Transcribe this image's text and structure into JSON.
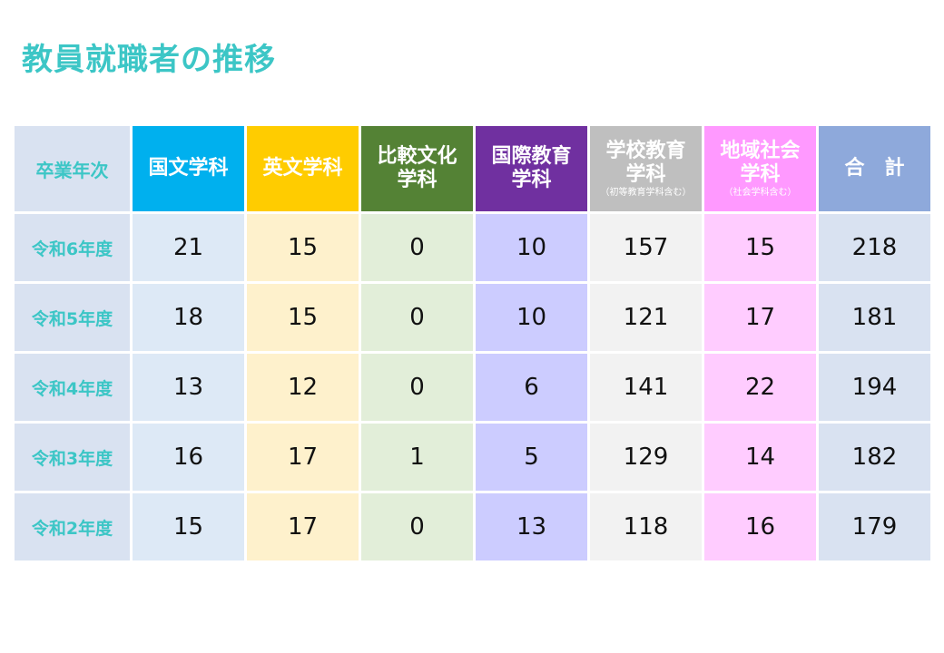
{
  "page": {
    "title": "教員就職者の推移"
  },
  "colors": {
    "title": "#3cc6c6",
    "year_col": "#d9e2f1",
    "total_col": "#d9e2f1"
  },
  "table": {
    "corner": "卒業年次",
    "columns": [
      {
        "key": "kokubun",
        "lines": [
          "国文学科"
        ],
        "sub": "",
        "header_bg": "#00b0ee",
        "cell_bg": "#dde9f6"
      },
      {
        "key": "eibun",
        "lines": [
          "英文学科"
        ],
        "sub": "",
        "header_bg": "#ffcc00",
        "cell_bg": "#fef1cc"
      },
      {
        "key": "hikaku",
        "lines": [
          "比較文化",
          "学科"
        ],
        "sub": "",
        "header_bg": "#548235",
        "cell_bg": "#e2eed9"
      },
      {
        "key": "kokusai",
        "lines": [
          "国際教育",
          "学科"
        ],
        "sub": "",
        "header_bg": "#7030a0",
        "cell_bg": "#ccccff"
      },
      {
        "key": "gakko",
        "lines": [
          "学校教育",
          "学科"
        ],
        "sub": "（初等教育学科含む）",
        "header_bg": "#bfbfbf",
        "cell_bg": "#f2f2f2"
      },
      {
        "key": "chiiki",
        "lines": [
          "地域社会",
          "学科"
        ],
        "sub": "（社会学科含む）",
        "header_bg": "#ff99ff",
        "cell_bg": "#ffccff"
      },
      {
        "key": "total",
        "lines": [
          "合　計"
        ],
        "sub": "",
        "header_bg": "#8ea9db",
        "cell_bg": "#d9e2f1"
      }
    ],
    "rows": [
      {
        "year": "令和6年度",
        "values": [
          "21",
          "15",
          "0",
          "10",
          "157",
          "15",
          "218"
        ]
      },
      {
        "year": "令和5年度",
        "values": [
          "18",
          "15",
          "0",
          "10",
          "121",
          "17",
          "181"
        ]
      },
      {
        "year": "令和4年度",
        "values": [
          "13",
          "12",
          "0",
          "6",
          "141",
          "22",
          "194"
        ]
      },
      {
        "year": "令和3年度",
        "values": [
          "16",
          "17",
          "1",
          "5",
          "129",
          "14",
          "182"
        ]
      },
      {
        "year": "令和2年度",
        "values": [
          "15",
          "17",
          "0",
          "13",
          "118",
          "16",
          "179"
        ]
      }
    ]
  }
}
